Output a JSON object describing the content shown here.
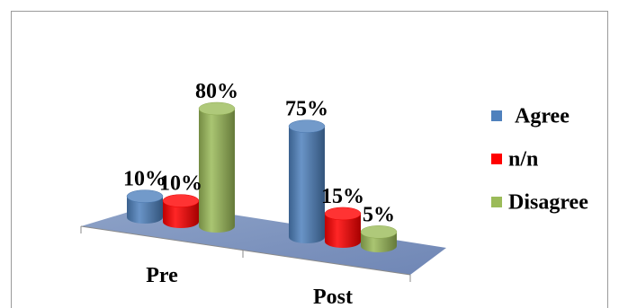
{
  "chart_data": {
    "type": "bar",
    "style": "3d-cylinder",
    "categories": [
      "Pre",
      "Post"
    ],
    "series": [
      {
        "name": "Agree",
        "color": "#4f81bd",
        "values": [
          10,
          75
        ],
        "labels": [
          "10%",
          "75%"
        ]
      },
      {
        "name": "n/n",
        "color": "#ff0000",
        "values": [
          10,
          15
        ],
        "labels": [
          "10%",
          "15%"
        ]
      },
      {
        "name": "Disagree",
        "color": "#9bbb59",
        "values": [
          80,
          5
        ],
        "labels": [
          "80%",
          "5%"
        ]
      }
    ],
    "title": "",
    "xlabel": "",
    "ylabel": "",
    "ylim": [
      0,
      80
    ],
    "grid": false,
    "legend": "right"
  }
}
